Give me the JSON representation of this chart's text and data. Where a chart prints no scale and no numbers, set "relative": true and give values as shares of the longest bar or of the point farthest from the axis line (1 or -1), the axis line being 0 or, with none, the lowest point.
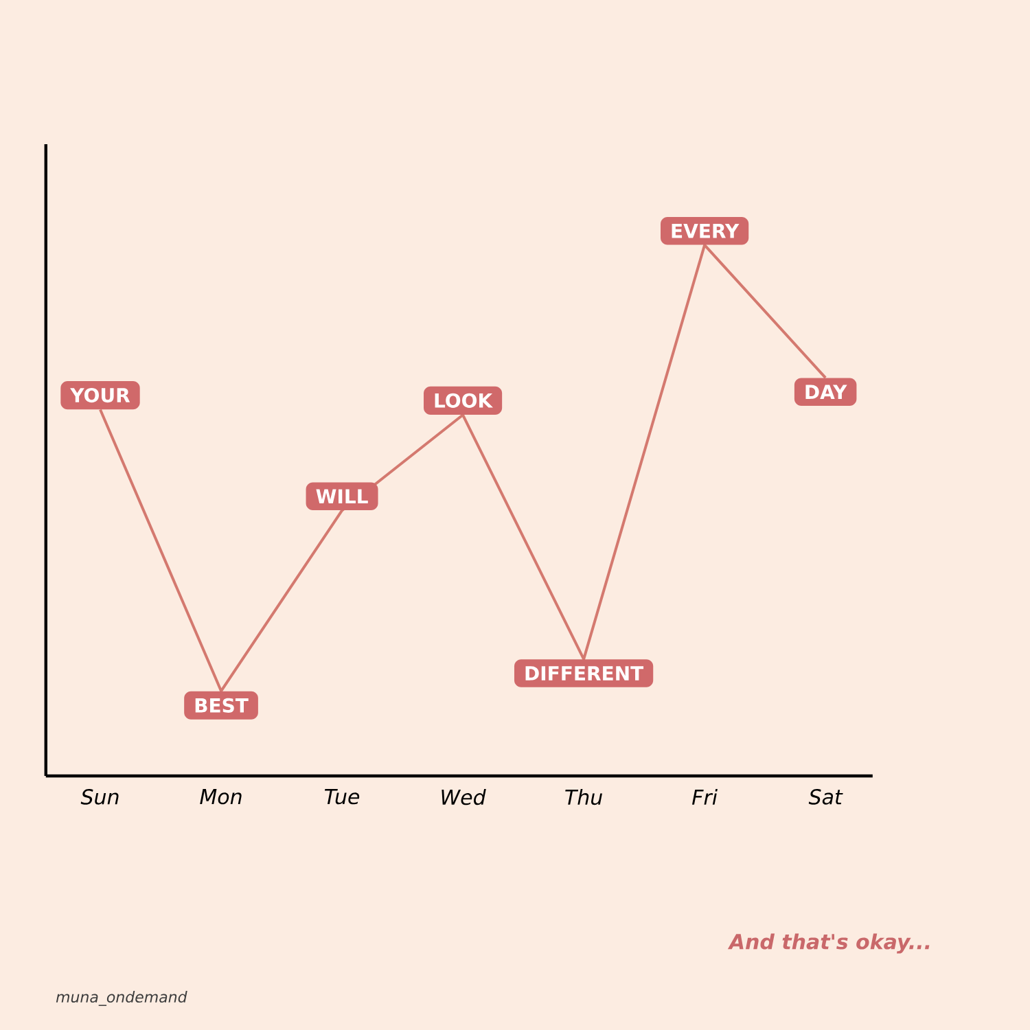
{
  "chart_data": {
    "type": "line",
    "relative": true,
    "categories": [
      "Sun",
      "Mon",
      "Tue",
      "Wed",
      "Thu",
      "Fri",
      "Sat"
    ],
    "series": [
      {
        "color": "#d4796f",
        "values": [
          0.69,
          0.16,
          0.5,
          0.68,
          0.22,
          1,
          0.75
        ]
      }
    ],
    "line_style": "solid",
    "grid": false,
    "tick_labels": "x",
    "annotations": [
      {
        "text": "YOUR",
        "x": "Sun",
        "y": 0.69
      },
      {
        "text": "BEST",
        "x": "Mon",
        "y": 0.16
      },
      {
        "text": "WILL",
        "x": "Tue",
        "y": 0.5
      },
      {
        "text": "LOOK",
        "x": "Wed",
        "y": 0.68
      },
      {
        "text": "DIFFERENT",
        "x": "Thu",
        "y": 0.22
      },
      {
        "text": "EVERY",
        "x": "Fri",
        "y": 1
      },
      {
        "text": "DAY",
        "x": "Sat",
        "y": 0.75
      },
      "And that's okay...",
      "muna_ondemand"
    ]
  }
}
